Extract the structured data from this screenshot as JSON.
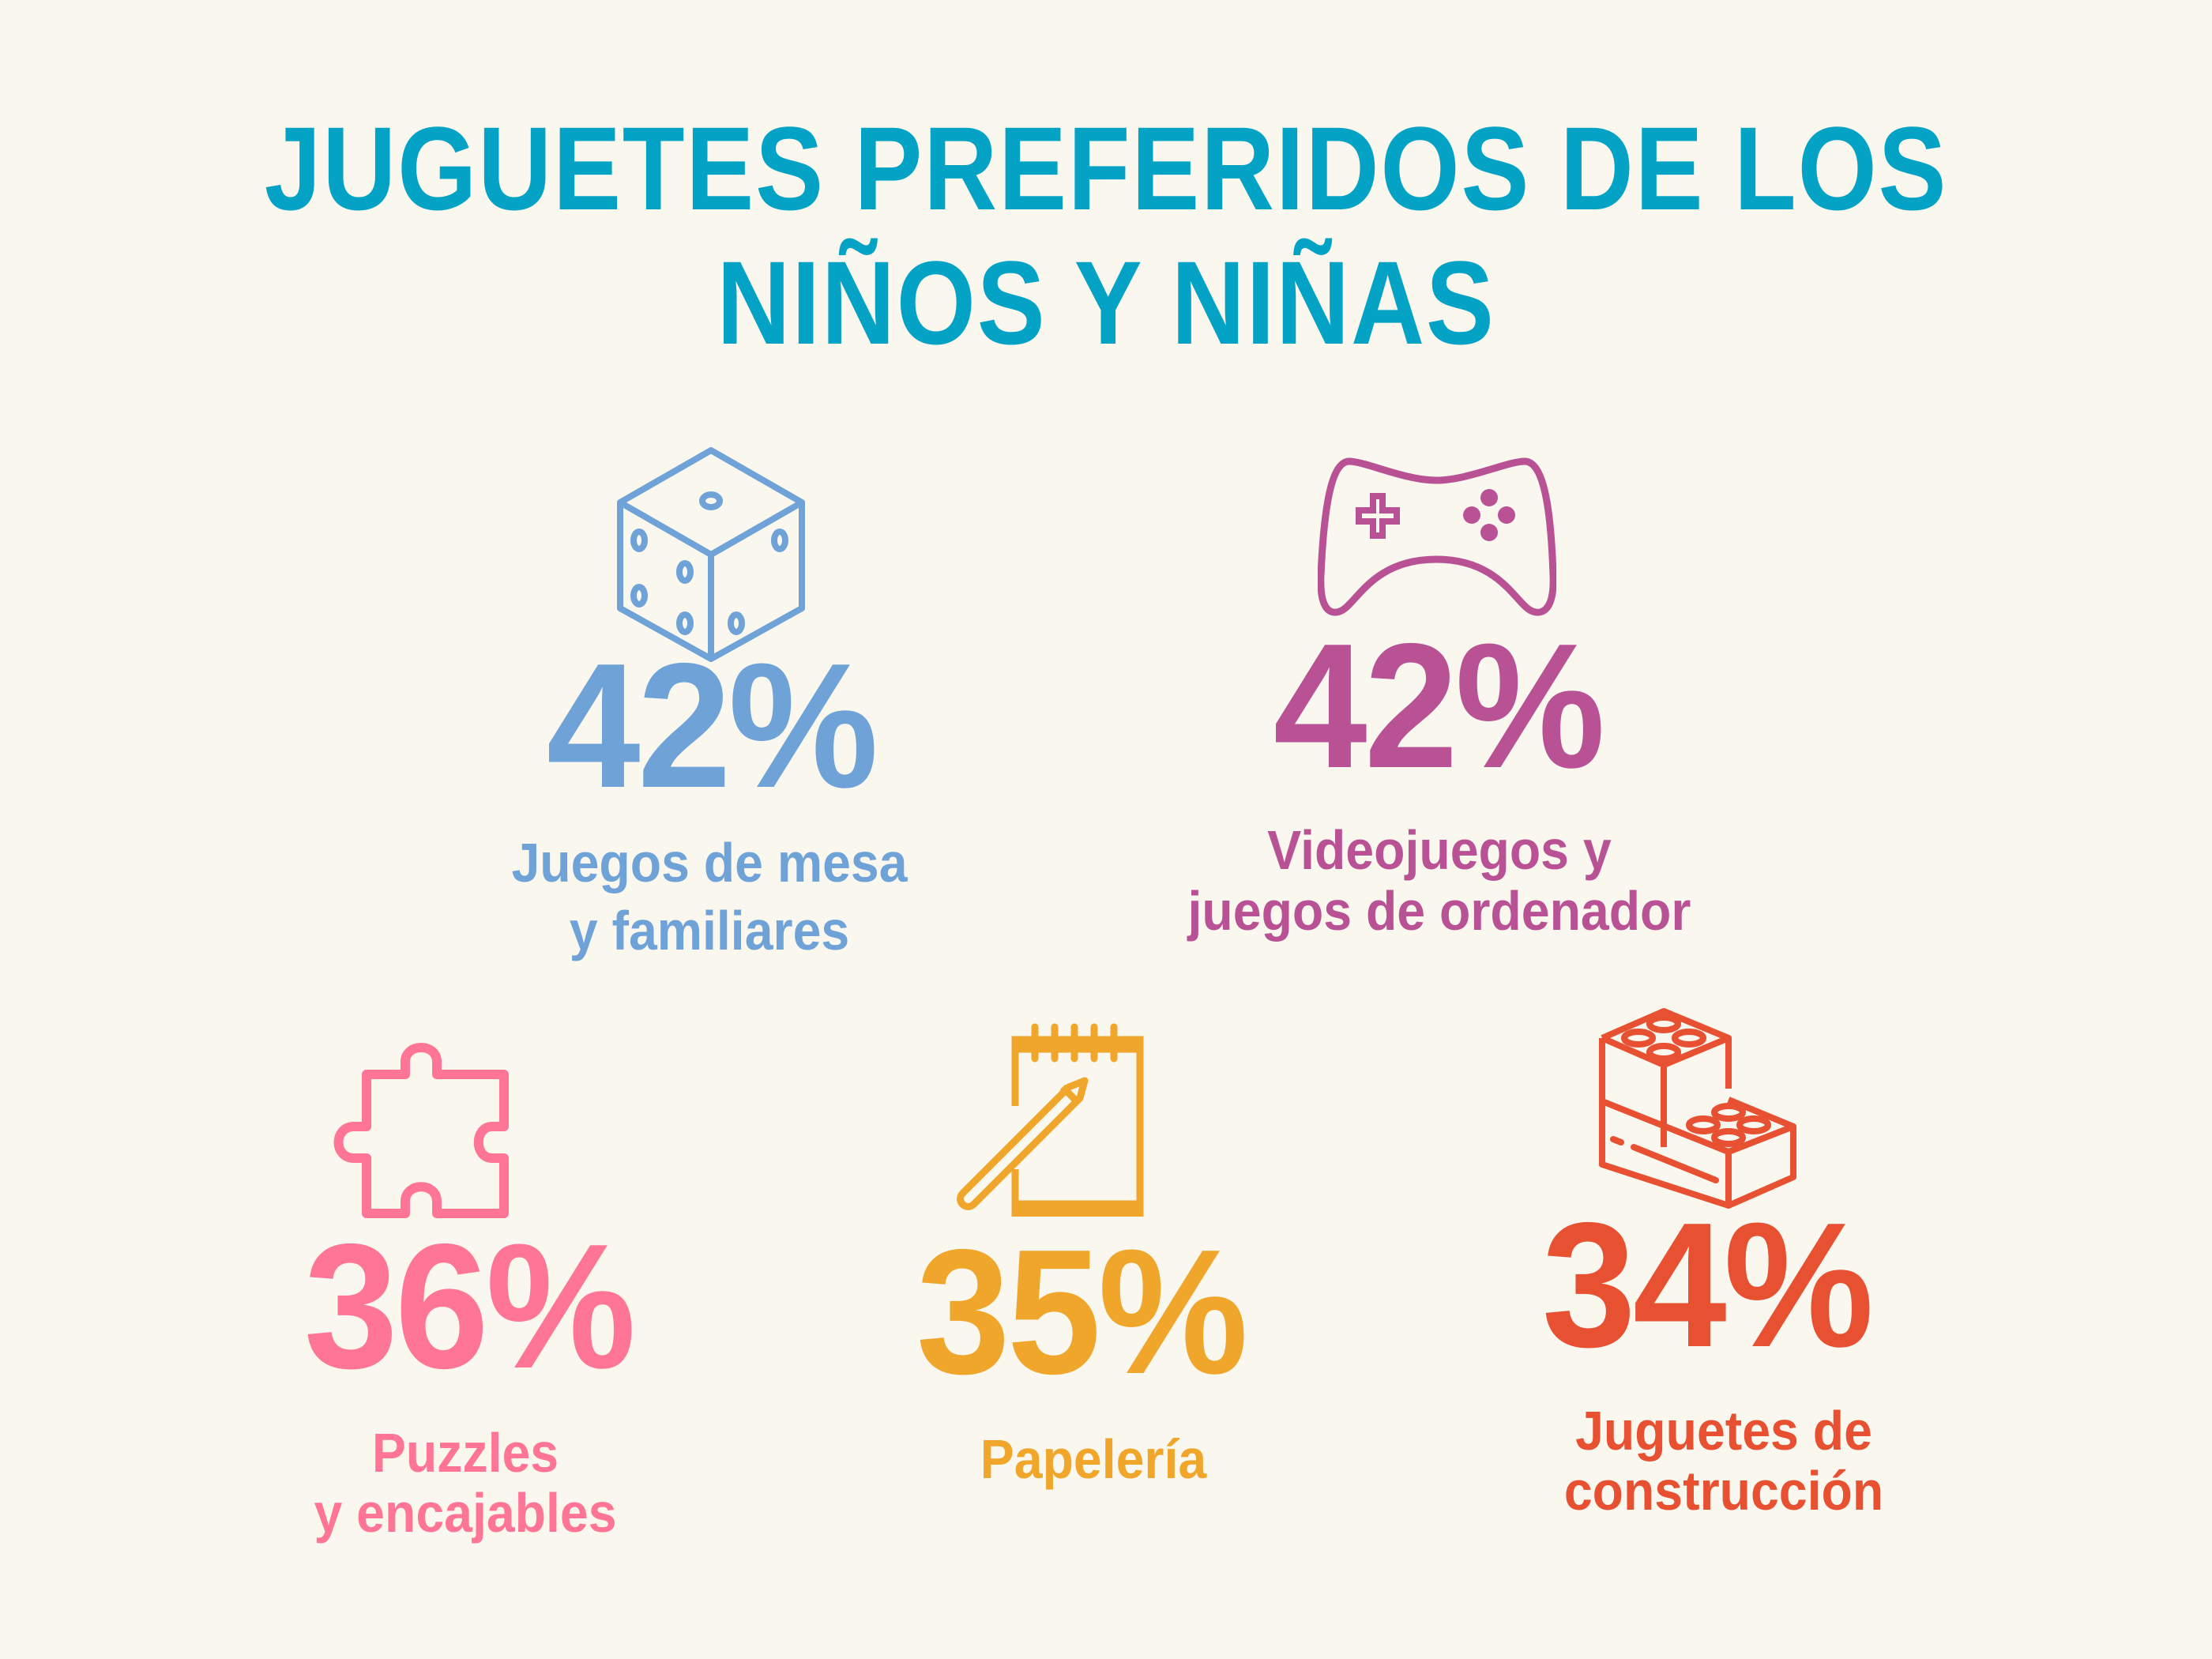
{
  "title": {
    "line1": "JUGUETES PREFERIDOS DE LOS",
    "line2": "NIÑOS Y NIÑAS"
  },
  "colors": {
    "title": "#04a3c6",
    "background": "#f9f7ee"
  },
  "items": [
    {
      "icon": "dice-icon",
      "percent": "42%",
      "label1": "Juegos de mesa",
      "label2": "y familiares",
      "color": "#6fa3d8"
    },
    {
      "icon": "game-controller-icon",
      "percent": "42%",
      "label1": "Videojuegos y",
      "label2": "juegos de ordenador",
      "color": "#b85295"
    },
    {
      "icon": "puzzle-piece-icon",
      "percent": "36%",
      "label1": "Puzzles",
      "label2": "y encajables",
      "color": "#ff7597"
    },
    {
      "icon": "notepad-pencil-icon",
      "percent": "35%",
      "label1": "Papelería",
      "color": "#f0a62b"
    },
    {
      "icon": "building-bricks-icon",
      "percent": "34%",
      "label1": "Juguetes de",
      "label2": "construcción",
      "color": "#e85032"
    }
  ]
}
